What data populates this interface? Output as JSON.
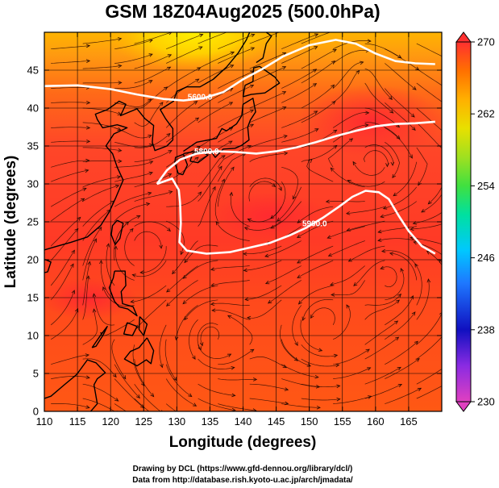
{
  "title": "GSM 18Z04Aug2025 (500.0hPa)",
  "chart_data": {
    "type": "heatmap",
    "title": "GSM 18Z04Aug2025 (500.0hPa)",
    "xlabel": "Longitude (degrees)",
    "ylabel": "Latitude  (degrees)",
    "xlim": [
      110,
      170
    ],
    "ylim": [
      0,
      50
    ],
    "x_ticks": [
      110,
      115,
      120,
      125,
      130,
      135,
      140,
      145,
      150,
      155,
      160,
      165
    ],
    "y_ticks": [
      0,
      5,
      10,
      15,
      20,
      25,
      30,
      35,
      40,
      45
    ],
    "colorbar": {
      "min": 230,
      "max": 270,
      "ticks": [
        230,
        238,
        246,
        254,
        262,
        270
      ],
      "colors": [
        "#e040c0",
        "#8a2be2",
        "#1010c0",
        "#1e78ff",
        "#00c8ff",
        "#00e0a0",
        "#40e040",
        "#a0e020",
        "#e8e000",
        "#ffb000",
        "#ff7000",
        "#ff3030"
      ]
    },
    "field_description_colors": {
      "tropics": "#ff5a14",
      "mid": "#ff3c28",
      "north": "#ffb400"
    },
    "contours": [
      {
        "label": "5600.0",
        "points": [
          [
            110,
            42.9
          ],
          [
            115,
            43.0
          ],
          [
            120,
            42.5
          ],
          [
            124,
            41.8
          ],
          [
            128,
            41.2
          ],
          [
            131,
            41.0
          ],
          [
            134,
            41.3
          ],
          [
            137,
            42.1
          ],
          [
            140,
            43.8
          ],
          [
            143,
            45.2
          ],
          [
            146,
            46.8
          ],
          [
            150,
            48.3
          ],
          [
            154,
            49.0
          ],
          [
            157,
            48.5
          ],
          [
            160,
            47.2
          ],
          [
            163,
            46.2
          ],
          [
            166,
            45.9
          ],
          [
            169,
            45.8
          ]
        ],
        "label_at": [
          133.5,
          41.5
        ]
      },
      {
        "label": "5800.0",
        "points": [
          [
            127,
            30.0
          ],
          [
            128.5,
            31.8
          ],
          [
            130.5,
            33.2
          ],
          [
            133,
            34.0
          ],
          [
            136,
            34.3
          ],
          [
            139,
            34.2
          ],
          [
            142,
            34.0
          ],
          [
            145,
            34.3
          ],
          [
            148,
            34.8
          ],
          [
            151,
            35.5
          ],
          [
            154,
            36.3
          ],
          [
            157,
            37.0
          ],
          [
            160,
            37.6
          ],
          [
            163,
            37.9
          ],
          [
            166,
            38.0
          ],
          [
            169,
            38.2
          ]
        ],
        "label_at": [
          134.5,
          34.3
        ]
      },
      {
        "label": "5900.0",
        "points": [
          [
            127,
            30.0
          ],
          [
            129.3,
            30.7
          ],
          [
            130.3,
            29.2
          ],
          [
            130.5,
            27.5
          ],
          [
            130.6,
            24.8
          ],
          [
            130.4,
            22.3
          ],
          [
            131.5,
            21.2
          ],
          [
            134.5,
            20.8
          ],
          [
            138,
            21.0
          ],
          [
            141,
            21.6
          ],
          [
            144,
            22.2
          ],
          [
            147,
            23.2
          ],
          [
            149.5,
            24.2
          ],
          [
            152,
            25.5
          ],
          [
            154.5,
            27.0
          ],
          [
            156.5,
            28.3
          ],
          [
            158.5,
            29.1
          ],
          [
            160.5,
            28.9
          ],
          [
            162,
            28.0
          ],
          [
            163.5,
            25.8
          ],
          [
            165,
            23.8
          ],
          [
            167,
            21.8
          ],
          [
            169,
            20.8
          ]
        ],
        "label_at": [
          150.8,
          24.8
        ]
      }
    ],
    "coastline_note": "Japan, Korea, China, Taiwan, Philippines drawn as outline reference",
    "has_streamlines": true,
    "grid": true
  },
  "xlabel": "Longitude (degrees)",
  "ylabel": "Latitude  (degrees)",
  "credits": {
    "line1": "Drawing by DCL (https://www.gfd-dennou.org/library/dcl/)",
    "line2": "Data from http://database.rish.kyoto-u.ac.jp/arch/jmadata/"
  }
}
